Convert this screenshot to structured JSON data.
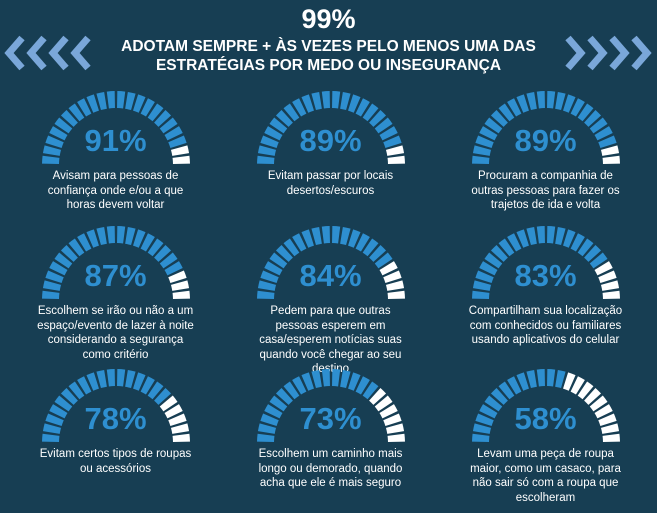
{
  "header": {
    "headline": "99%",
    "subtitle": "ADOTAM SEMPRE + ÀS VEZES PELO MENOS UMA DAS ESTRATÉGIAS POR MEDO OU INSEGURANÇA"
  },
  "colors": {
    "background": "#173e53",
    "fill": "#2e8fd0",
    "empty": "#ffffff",
    "chevron": "#7aa7d9"
  },
  "chart_data": {
    "type": "gauge",
    "items": [
      {
        "value": 91,
        "label": "91%",
        "text": "Avisam para pessoas de confiança onde e/ou a que horas devem voltar"
      },
      {
        "value": 89,
        "label": "89%",
        "text": "Evitam passar por locais desertos/escuros"
      },
      {
        "value": 89,
        "label": "89%",
        "text": "Procuram a companhia de outras pessoas para fazer os trajetos de ida e volta"
      },
      {
        "value": 87,
        "label": "87%",
        "text": "Escolhem se irão ou não a um espaço/evento de lazer à noite considerando a segurança como critério"
      },
      {
        "value": 84,
        "label": "84%",
        "text": "Pedem para que outras pessoas esperem em casa/esperem notícias suas quando você chegar ao seu destino"
      },
      {
        "value": 83,
        "label": "83%",
        "text": "Compartilham sua localização com conhecidos ou familiares usando aplicativos do celular"
      },
      {
        "value": 78,
        "label": "78%",
        "text": "Evitam certos tipos de roupas ou acessórios"
      },
      {
        "value": 73,
        "label": "73%",
        "text": "Escolhem um caminho mais longo ou demorado, quando acha que ele é mais seguro"
      },
      {
        "value": 58,
        "label": "58%",
        "text": "Levam uma peça de roupa maior, como um casaco, para não sair só com a roupa que escolheram"
      }
    ],
    "range": [
      0,
      100
    ]
  }
}
